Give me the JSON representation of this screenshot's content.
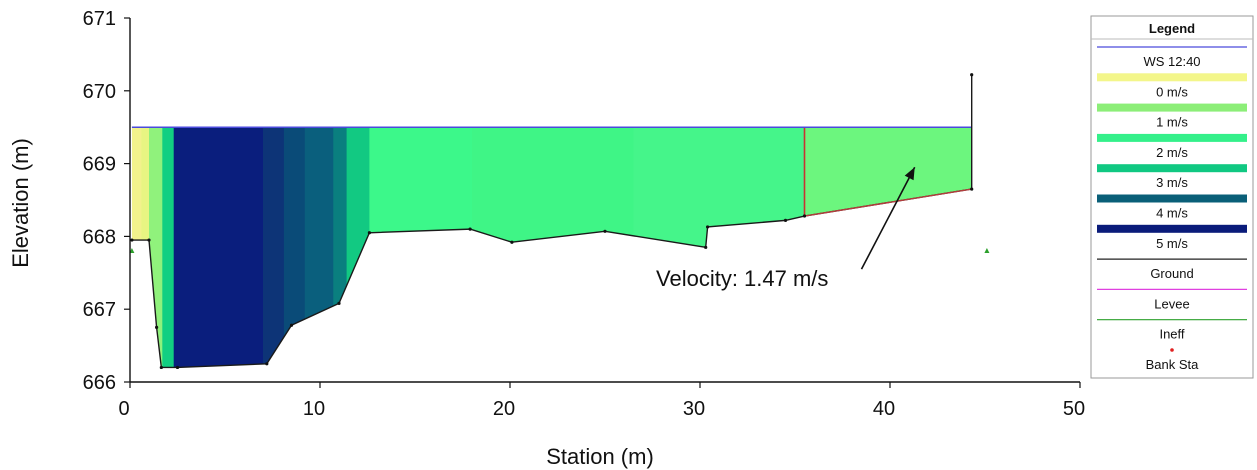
{
  "chart_data": {
    "type": "area",
    "xlabel": "Station (m)",
    "ylabel": "Elevation (m)",
    "xlim": [
      0,
      50
    ],
    "ylim": [
      666,
      671
    ],
    "x_ticks": [
      "0",
      "10",
      "20",
      "30",
      "40",
      "50"
    ],
    "y_ticks": [
      "666",
      "667",
      "668",
      "669",
      "670",
      "671"
    ],
    "water_surface": 669.5,
    "ground": [
      [
        0.1,
        667.95
      ],
      [
        1.0,
        667.95
      ],
      [
        1.4,
        666.75
      ],
      [
        1.65,
        666.2
      ],
      [
        2.5,
        666.2
      ],
      [
        7.2,
        666.25
      ],
      [
        8.5,
        666.78
      ],
      [
        11.0,
        667.08
      ],
      [
        12.6,
        668.05
      ],
      [
        17.9,
        668.1
      ],
      [
        20.1,
        667.92
      ],
      [
        25.0,
        668.07
      ],
      [
        30.3,
        667.85
      ],
      [
        30.4,
        668.13
      ],
      [
        34.5,
        668.22
      ],
      [
        35.5,
        668.28
      ],
      [
        44.3,
        668.65
      ],
      [
        44.3,
        670.22
      ]
    ],
    "velocity_slices": [
      {
        "x0": 0.1,
        "x1": 0.6,
        "color": "#f2f28c"
      },
      {
        "x0": 0.6,
        "x1": 1.0,
        "color": "#e8f582"
      },
      {
        "x0": 1.0,
        "x1": 1.7,
        "color": "#90f27c"
      },
      {
        "x0": 1.7,
        "x1": 2.3,
        "color": "#12cf82"
      },
      {
        "x0": 2.3,
        "x1": 7.0,
        "color": "#0a1e7d"
      },
      {
        "x0": 7.0,
        "x1": 8.1,
        "color": "#0d3477"
      },
      {
        "x0": 8.1,
        "x1": 9.2,
        "color": "#0a4b78"
      },
      {
        "x0": 9.2,
        "x1": 10.7,
        "color": "#0a5f7d"
      },
      {
        "x0": 10.7,
        "x1": 11.4,
        "color": "#0a7f7f"
      },
      {
        "x0": 11.4,
        "x1": 12.6,
        "color": "#12c982"
      },
      {
        "x0": 12.6,
        "x1": 18.0,
        "color": "#3cf88a"
      },
      {
        "x0": 18.0,
        "x1": 26.5,
        "color": "#3ff586"
      },
      {
        "x0": 26.5,
        "x1": 35.5,
        "color": "#45f58a"
      },
      {
        "x0": 35.5,
        "x1": 44.3,
        "color": "#6cf67e"
      }
    ],
    "ineffective_points": [
      [
        0.1,
        667.8
      ],
      [
        45.1,
        667.8
      ]
    ],
    "bank_station_x": 35.5,
    "annotation": {
      "text": "Velocity: 1.47 m/s",
      "target": [
        41.3,
        668.95
      ],
      "anchor": [
        38.5,
        667.55
      ]
    },
    "legend": {
      "title": "Legend",
      "entries": [
        {
          "label": "WS 12:40",
          "kind": "line",
          "color": "#4a4adc"
        },
        {
          "label": "0 m/s",
          "kind": "box",
          "color": "#f3f68a"
        },
        {
          "label": "1 m/s",
          "kind": "box",
          "color": "#8cee78"
        },
        {
          "label": "2 m/s",
          "kind": "box",
          "color": "#34f08a"
        },
        {
          "label": "3 m/s",
          "kind": "box",
          "color": "#10c882"
        },
        {
          "label": "4 m/s",
          "kind": "box",
          "color": "#0a5f78"
        },
        {
          "label": "5 m/s",
          "kind": "box",
          "color": "#0a1b7a"
        },
        {
          "label": "Ground",
          "kind": "line",
          "color": "#222222"
        },
        {
          "label": "Levee",
          "kind": "line",
          "color": "#e040e0"
        },
        {
          "label": "Ineff",
          "kind": "line",
          "color": "#2ca02c"
        },
        {
          "label": "Bank Sta",
          "kind": "dot",
          "color": "#e02020"
        }
      ]
    }
  }
}
